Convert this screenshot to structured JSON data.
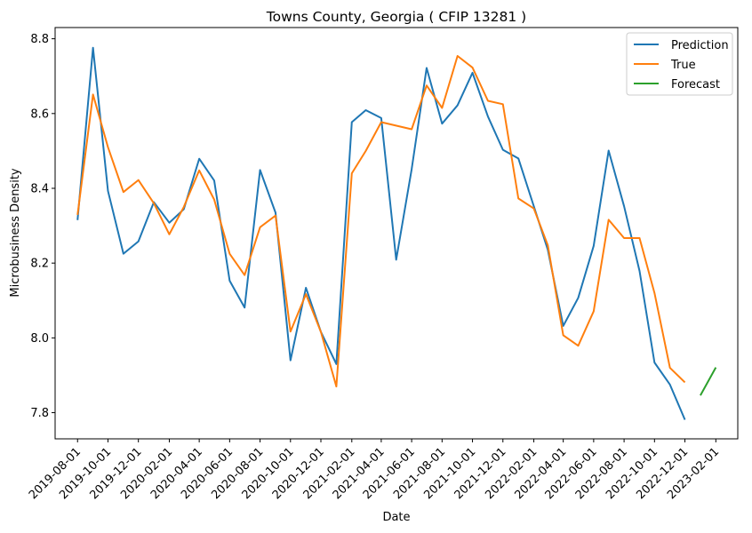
{
  "chart_data": {
    "type": "line",
    "title": "Towns County, Georgia ( CFIP 13281 )",
    "xlabel": "Date",
    "ylabel": "Microbusiness Density",
    "ylim": [
      7.73,
      8.83
    ],
    "yticks": [
      7.8,
      8.0,
      8.2,
      8.4,
      8.6,
      8.8
    ],
    "xlim": [
      "2019-06-17",
      "2023-03-17"
    ],
    "xticks": [
      "2019-08-01",
      "2019-10-01",
      "2019-12-01",
      "2020-02-01",
      "2020-04-01",
      "2020-06-01",
      "2020-08-01",
      "2020-10-01",
      "2020-12-01",
      "2021-02-01",
      "2021-04-01",
      "2021-06-01",
      "2021-08-01",
      "2021-10-01",
      "2021-12-01",
      "2022-02-01",
      "2022-04-01",
      "2022-06-01",
      "2022-08-01",
      "2022-10-01",
      "2022-12-01",
      "2023-02-01"
    ],
    "grid": false,
    "legend_position": "top-right",
    "series": [
      {
        "name": "Prediction",
        "color": "#1f77b4",
        "x": [
          "2019-08-01",
          "2019-09-01",
          "2019-10-01",
          "2019-11-01",
          "2019-12-01",
          "2020-01-01",
          "2020-02-01",
          "2020-03-01",
          "2020-04-01",
          "2020-05-01",
          "2020-06-01",
          "2020-07-01",
          "2020-08-01",
          "2020-09-01",
          "2020-10-01",
          "2020-11-01",
          "2020-12-01",
          "2021-01-01",
          "2021-02-01",
          "2021-03-01",
          "2021-04-01",
          "2021-05-01",
          "2021-06-01",
          "2021-07-01",
          "2021-08-01",
          "2021-09-01",
          "2021-10-01",
          "2021-11-01",
          "2021-12-01",
          "2022-01-01",
          "2022-02-01",
          "2022-03-01",
          "2022-04-01",
          "2022-05-01",
          "2022-06-01",
          "2022-07-01",
          "2022-08-01",
          "2022-09-01",
          "2022-10-01",
          "2022-11-01",
          "2022-12-01"
        ],
        "values": [
          8.315,
          8.776,
          8.393,
          8.225,
          8.258,
          8.363,
          8.308,
          8.344,
          8.479,
          8.421,
          8.153,
          8.081,
          8.449,
          8.335,
          7.94,
          8.134,
          8.016,
          7.93,
          8.577,
          8.609,
          8.588,
          8.209,
          8.451,
          8.722,
          8.573,
          8.622,
          8.709,
          8.592,
          8.503,
          8.48,
          8.352,
          8.236,
          8.032,
          8.107,
          8.246,
          8.501,
          8.352,
          8.179,
          7.934,
          7.875,
          7.781
        ]
      },
      {
        "name": "True",
        "color": "#ff7f0e",
        "x": [
          "2019-08-01",
          "2019-09-01",
          "2019-10-01",
          "2019-11-01",
          "2019-12-01",
          "2020-01-01",
          "2020-02-01",
          "2020-03-01",
          "2020-04-01",
          "2020-05-01",
          "2020-06-01",
          "2020-07-01",
          "2020-08-01",
          "2020-09-01",
          "2020-10-01",
          "2020-11-01",
          "2020-12-01",
          "2021-01-01",
          "2021-02-01",
          "2021-03-01",
          "2021-04-01",
          "2021-06-01",
          "2021-07-01",
          "2021-08-01",
          "2021-09-01",
          "2021-10-01",
          "2021-11-01",
          "2021-12-01",
          "2022-01-01",
          "2022-02-01",
          "2022-03-01",
          "2022-04-01",
          "2022-05-01",
          "2022-06-01",
          "2022-07-01",
          "2022-08-01",
          "2022-09-01",
          "2022-10-01",
          "2022-11-01",
          "2022-12-01"
        ],
        "values": [
          8.329,
          8.651,
          8.51,
          8.39,
          8.422,
          8.36,
          8.277,
          8.35,
          8.448,
          8.37,
          8.225,
          8.168,
          8.296,
          8.327,
          8.017,
          8.117,
          8.016,
          7.87,
          8.44,
          8.5,
          8.577,
          8.558,
          8.675,
          8.615,
          8.754,
          8.723,
          8.634,
          8.625,
          8.373,
          8.346,
          8.248,
          8.007,
          7.979,
          8.071,
          8.316,
          8.267,
          8.267,
          8.12,
          7.92,
          7.881
        ]
      },
      {
        "name": "Forecast",
        "color": "#2ca02c",
        "x": [
          "2023-01-01",
          "2023-02-01"
        ],
        "values": [
          7.846,
          7.921
        ]
      }
    ]
  }
}
